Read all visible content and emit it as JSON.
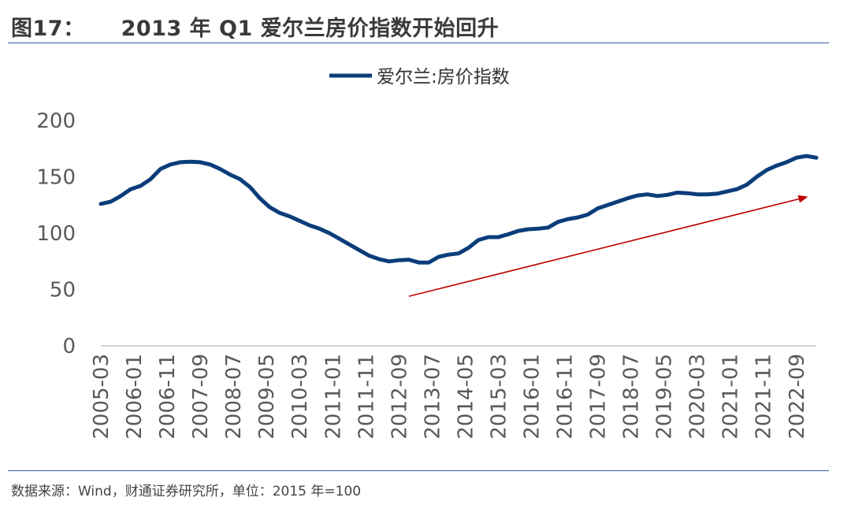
{
  "figure": {
    "number": "图17：",
    "title": "2013 年 Q1 爱尔兰房价指数开始回升",
    "source": "数据来源：Wind，财通证券研究所，单位：2015 年=100"
  },
  "colors": {
    "line": "#0b3d7a",
    "arrow": "#c00000",
    "rule": "#2f5f9e",
    "axis": "#bfbfbf"
  },
  "chart_data": {
    "type": "line",
    "title": "2013 年 Q1 爱尔兰房价指数开始回升",
    "legend": {
      "position": "top-center"
    },
    "ylim": [
      0,
      200
    ],
    "yticks": [
      0,
      50,
      100,
      150,
      200
    ],
    "ytick_labels": [
      "0",
      "50",
      "100",
      "150",
      "200"
    ],
    "x_start": "2005-03",
    "x_step_months": 3,
    "xtick_labels": [
      "2005-03",
      "2006-01",
      "2006-11",
      "2007-09",
      "2008-07",
      "2009-05",
      "2010-03",
      "2011-01",
      "2011-11",
      "2012-09",
      "2013-07",
      "2014-05",
      "2015-03",
      "2016-01",
      "2016-11",
      "2017-09",
      "2018-07",
      "2019-05",
      "2020-03",
      "2021-01",
      "2021-11",
      "2022-09"
    ],
    "series": [
      {
        "name": "爱尔兰:房价指数",
        "values": [
          126,
          128,
          133,
          139,
          142,
          148,
          157,
          161,
          163,
          163.5,
          163,
          161,
          157,
          152,
          148,
          141,
          131,
          123,
          118,
          115,
          111,
          107,
          104,
          100,
          95,
          90,
          85,
          80,
          77,
          75,
          76,
          76.5,
          74,
          74,
          79,
          81,
          82,
          87,
          94,
          96.5,
          96.5,
          99,
          102,
          103.5,
          104,
          105,
          110,
          112.5,
          114,
          116.5,
          122,
          125,
          128,
          131,
          133.5,
          134.5,
          133,
          134,
          136,
          135.5,
          134.5,
          134.5,
          135,
          137,
          139,
          143,
          150,
          156,
          160,
          163,
          167,
          168.5,
          167
        ]
      }
    ],
    "annotation": {
      "type": "trend-arrow",
      "from": {
        "x": "2012-12",
        "y": 44
      },
      "to": {
        "x": "2022-12",
        "y": 132
      }
    }
  }
}
